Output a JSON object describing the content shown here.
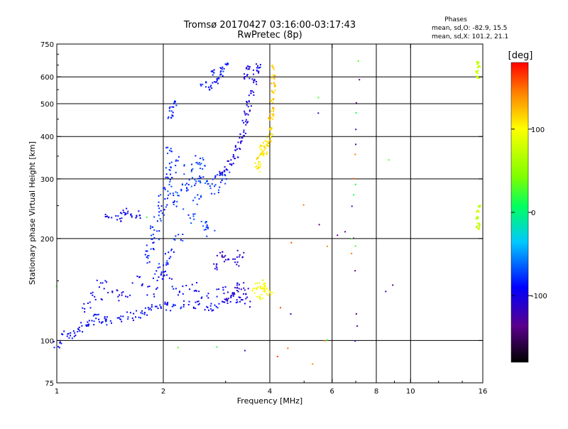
{
  "header": {
    "title": "Tromsø 20170427 03:16:00-03:17:43",
    "subtitle": "RwPretec (8p)",
    "stats": {
      "heading": "Phases",
      "line_o": "mean, sd,O: -82.9, 15.5",
      "line_x": "mean, sd,X: 101.2, 21.1"
    }
  },
  "colorbar": {
    "label": "[deg]",
    "ticks": [
      {
        "value": 100,
        "label": "100"
      },
      {
        "value": 0,
        "label": "0"
      },
      {
        "value": -100,
        "label": "-100"
      }
    ],
    "range": [
      -180,
      180
    ]
  },
  "chart_data": {
    "type": "scatter",
    "xlabel": "Frequency [MHz]",
    "ylabel": "Stationary phase Virtual Height [km]",
    "xscale": "log",
    "yscale": "log",
    "xlim": [
      1,
      16
    ],
    "ylim": [
      75,
      750
    ],
    "x_ticks": [
      1,
      2,
      4,
      6,
      8,
      10,
      16
    ],
    "x_tick_labels": [
      "1",
      "2",
      "4",
      "6",
      "8",
      "10",
      "16"
    ],
    "y_ticks": [
      75,
      100,
      200,
      300,
      400,
      500,
      600,
      750
    ],
    "y_tick_labels": [
      "75",
      "100",
      "200",
      "300",
      "400",
      "500",
      "600",
      "750"
    ],
    "grid": true,
    "grid_x": [
      2,
      4,
      6,
      8,
      10
    ],
    "grid_y": [
      100,
      200,
      300,
      400,
      500,
      600
    ],
    "color_by": "phase",
    "traces": [
      {
        "name": "",
        "phase": -90,
        "spread": 0.03,
        "points": [
          [
            1.0,
            97
          ],
          [
            1.05,
            105
          ],
          [
            1.1,
            104
          ],
          [
            1.15,
            108
          ],
          [
            1.2,
            110
          ],
          [
            1.25,
            112
          ],
          [
            1.3,
            118
          ],
          [
            1.35,
            116
          ],
          [
            1.4,
            114
          ],
          [
            1.5,
            117
          ],
          [
            1.6,
            118
          ],
          [
            1.7,
            120
          ],
          [
            1.8,
            122
          ],
          [
            1.9,
            125
          ],
          [
            2.0,
            128
          ],
          [
            2.1,
            126
          ],
          [
            2.3,
            128
          ],
          [
            2.5,
            127
          ],
          [
            2.7,
            126
          ],
          [
            2.8,
            126
          ]
        ]
      },
      {
        "name": "",
        "phase": -95,
        "spread": 0.04,
        "points": [
          [
            1.2,
            125
          ],
          [
            1.3,
            135
          ],
          [
            1.35,
            145
          ],
          [
            1.45,
            140
          ],
          [
            1.55,
            135
          ],
          [
            1.7,
            150
          ],
          [
            1.85,
            140
          ],
          [
            1.95,
            155
          ],
          [
            2.05,
            150
          ],
          [
            2.2,
            140
          ],
          [
            2.4,
            145
          ],
          [
            2.6,
            135
          ],
          [
            2.9,
            140
          ],
          [
            3.1,
            135
          ],
          [
            3.3,
            132
          ],
          [
            3.4,
            130
          ]
        ]
      },
      {
        "name": "",
        "phase": -80,
        "spread": 0.035,
        "points": [
          [
            1.8,
            175
          ],
          [
            1.85,
            190
          ],
          [
            1.9,
            200
          ],
          [
            1.9,
            215
          ],
          [
            1.95,
            230
          ],
          [
            2.0,
            245
          ],
          [
            2.0,
            260
          ],
          [
            2.05,
            280
          ],
          [
            2.05,
            300
          ],
          [
            2.1,
            320
          ],
          [
            2.15,
            340
          ],
          [
            2.1,
            360
          ],
          [
            2.0,
            170
          ],
          [
            1.95,
            160
          ],
          [
            2.1,
            180
          ],
          [
            2.2,
            200
          ]
        ]
      },
      {
        "name": "",
        "phase": -75,
        "spread": 0.035,
        "points": [
          [
            2.2,
            270
          ],
          [
            2.3,
            280
          ],
          [
            2.4,
            290
          ],
          [
            2.5,
            300
          ],
          [
            2.6,
            300
          ],
          [
            2.7,
            290
          ],
          [
            2.8,
            280
          ],
          [
            2.9,
            300
          ],
          [
            3.0,
            310
          ],
          [
            2.35,
            320
          ],
          [
            2.5,
            340
          ],
          [
            2.6,
            330
          ],
          [
            2.2,
            250
          ],
          [
            2.4,
            230
          ],
          [
            2.6,
            220
          ],
          [
            2.7,
            210
          ],
          [
            2.5,
            260
          ]
        ]
      },
      {
        "name": "",
        "phase": -100,
        "spread": 0.02,
        "points": [
          [
            2.9,
            310
          ],
          [
            3.0,
            320
          ],
          [
            3.1,
            335
          ],
          [
            3.2,
            350
          ],
          [
            3.25,
            370
          ],
          [
            3.3,
            390
          ],
          [
            3.35,
            410
          ],
          [
            3.4,
            440
          ],
          [
            3.45,
            470
          ],
          [
            3.5,
            500
          ],
          [
            3.55,
            540
          ],
          [
            3.6,
            580
          ],
          [
            3.65,
            620
          ],
          [
            3.7,
            650
          ],
          [
            3.45,
            600
          ],
          [
            3.5,
            640
          ]
        ]
      },
      {
        "name": "",
        "phase": -85,
        "spread": 0.02,
        "points": [
          [
            2.1,
            480
          ],
          [
            2.15,
            500
          ],
          [
            2.1,
            460
          ],
          [
            2.6,
            570
          ],
          [
            2.7,
            560
          ],
          [
            2.8,
            580
          ],
          [
            2.9,
            600
          ],
          [
            2.95,
            630
          ],
          [
            3.0,
            650
          ],
          [
            2.75,
            620
          ]
        ]
      },
      {
        "name": "",
        "phase": -95,
        "spread": 0.025,
        "points": [
          [
            1.4,
            235
          ],
          [
            1.5,
            230
          ],
          [
            1.6,
            232
          ],
          [
            1.7,
            235
          ],
          [
            1.55,
            240
          ]
        ]
      },
      {
        "name": "",
        "phase": -110,
        "spread": 0.025,
        "points": [
          [
            3.0,
            130
          ],
          [
            3.1,
            135
          ],
          [
            3.2,
            140
          ],
          [
            3.3,
            145
          ],
          [
            3.4,
            140
          ],
          [
            3.2,
            170
          ],
          [
            3.0,
            175
          ],
          [
            2.9,
            180
          ],
          [
            3.3,
            180
          ],
          [
            2.8,
            165
          ]
        ]
      },
      {
        "name": "",
        "phase": 110,
        "spread": 0.02,
        "points": [
          [
            3.7,
            330
          ],
          [
            3.75,
            340
          ],
          [
            3.8,
            350
          ],
          [
            3.85,
            360
          ],
          [
            3.9,
            375
          ],
          [
            3.95,
            390
          ],
          [
            4.0,
            400
          ],
          [
            3.7,
            320
          ],
          [
            3.8,
            370
          ],
          [
            3.9,
            380
          ]
        ]
      },
      {
        "name": "",
        "phase": 120,
        "spread": 0.015,
        "points": [
          [
            4.0,
            420
          ],
          [
            4.02,
            450
          ],
          [
            4.05,
            480
          ],
          [
            4.07,
            510
          ],
          [
            4.08,
            540
          ],
          [
            4.1,
            570
          ],
          [
            4.1,
            600
          ],
          [
            4.1,
            640
          ],
          [
            4.05,
            460
          ]
        ]
      },
      {
        "name": "",
        "phase": 100,
        "spread": 0.02,
        "points": [
          [
            3.6,
            140
          ],
          [
            3.7,
            145
          ],
          [
            3.8,
            142
          ],
          [
            3.9,
            140
          ],
          [
            4.0,
            138
          ],
          [
            3.75,
            135
          ],
          [
            3.85,
            148
          ]
        ]
      },
      {
        "name": "",
        "phase": 75,
        "spread": 0.01,
        "points": [
          [
            15.5,
            600
          ],
          [
            15.6,
            640
          ],
          [
            15.4,
            620
          ],
          [
            15.5,
            660
          ],
          [
            15.6,
            250
          ],
          [
            15.5,
            240
          ],
          [
            15.4,
            230
          ],
          [
            15.6,
            220
          ],
          [
            15.5,
            215
          ]
        ]
      },
      {
        "name": "",
        "phase": -130,
        "spread": 0.005,
        "points": [
          [
            7.0,
            505
          ],
          [
            7.0,
            420
          ],
          [
            7.0,
            380
          ],
          [
            7.2,
            590
          ],
          [
            6.8,
            250
          ],
          [
            6.9,
            200
          ],
          [
            7.0,
            160
          ],
          [
            7.0,
            120
          ],
          [
            7.1,
            110
          ],
          [
            7.0,
            100
          ],
          [
            6.5,
            210
          ],
          [
            6.2,
            205
          ],
          [
            5.5,
            470
          ],
          [
            5.5,
            220
          ],
          [
            4.6,
            120
          ],
          [
            8.5,
            140
          ],
          [
            8.9,
            145
          ],
          [
            3.4,
            93
          ]
        ]
      },
      {
        "name": "",
        "phase": 20,
        "spread": 0.005,
        "points": [
          [
            7.1,
            670
          ],
          [
            7.0,
            470
          ],
          [
            7.0,
            290
          ],
          [
            6.9,
            270
          ],
          [
            7.0,
            190
          ],
          [
            6.8,
            200
          ],
          [
            5.8,
            100
          ],
          [
            5.5,
            520
          ],
          [
            8.7,
            340
          ],
          [
            1.8,
            230
          ],
          [
            2.85,
            96
          ],
          [
            2.2,
            95
          ],
          [
            1.0,
            145
          ]
        ]
      },
      {
        "name": "",
        "phase": 150,
        "spread": 0.005,
        "points": [
          [
            4.3,
            125
          ],
          [
            4.6,
            195
          ],
          [
            5.0,
            250
          ],
          [
            5.7,
            100
          ],
          [
            5.8,
            190
          ],
          [
            6.9,
            300
          ],
          [
            7.0,
            355
          ],
          [
            6.8,
            180
          ],
          [
            5.3,
            85
          ],
          [
            4.2,
            90
          ],
          [
            4.5,
            95
          ]
        ]
      }
    ]
  }
}
